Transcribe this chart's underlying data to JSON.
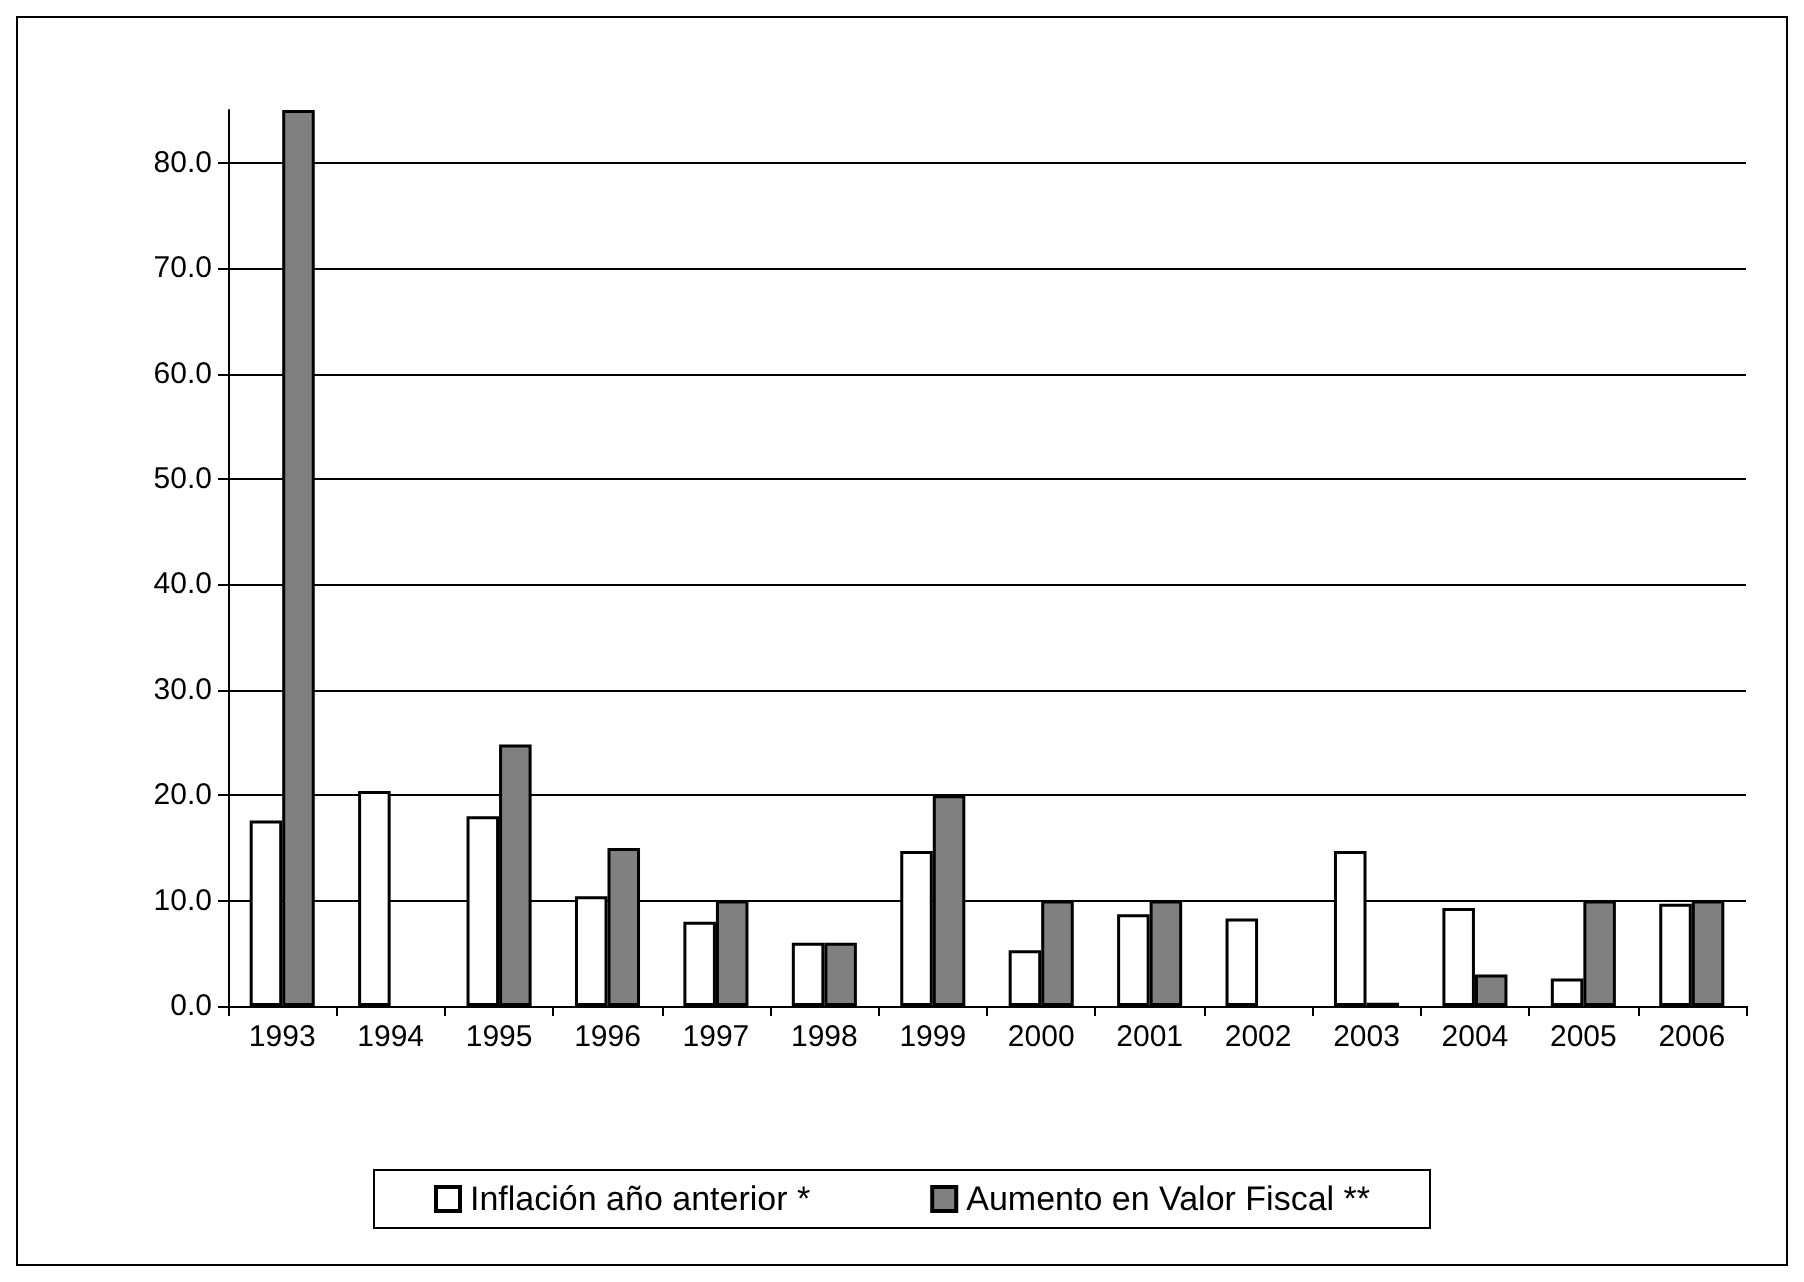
{
  "chart_data": {
    "type": "bar",
    "categories": [
      "1993",
      "1994",
      "1995",
      "1996",
      "1997",
      "1998",
      "1999",
      "2000",
      "2001",
      "2002",
      "2003",
      "2004",
      "2005",
      "2006"
    ],
    "series": [
      {
        "name": "Inflación año anterior *",
        "color": "#ffffff",
        "values": [
          17.6,
          20.4,
          18.0,
          10.4,
          8.0,
          6.0,
          14.7,
          5.3,
          8.7,
          8.3,
          14.7,
          9.3,
          2.6,
          9.7
        ]
      },
      {
        "name": "Aumento en Valor Fiscal **",
        "color": "#808080",
        "values": [
          85,
          null,
          24.8,
          15.0,
          10.0,
          6.0,
          20.0,
          10.0,
          10.0,
          null,
          0.3,
          3.0,
          10.0,
          10.0
        ]
      }
    ],
    "ylim": [
      0,
      85
    ],
    "yticks": [
      {
        "value": 0,
        "label": "0.0"
      },
      {
        "value": 10,
        "label": "10.0"
      },
      {
        "value": 20,
        "label": "20.0"
      },
      {
        "value": 30,
        "label": "30.0"
      },
      {
        "value": 40,
        "label": "40.0"
      },
      {
        "value": 50,
        "label": "50.0"
      },
      {
        "value": 60,
        "label": "60.0"
      },
      {
        "value": 70,
        "label": "70.0"
      },
      {
        "value": 80,
        "label": "80.0"
      }
    ],
    "grid": "y",
    "legend": "bottom"
  }
}
